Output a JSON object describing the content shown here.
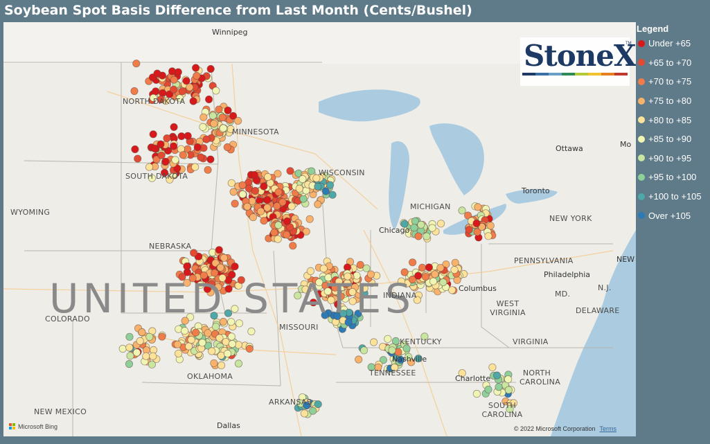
{
  "title": "Soybean Spot Basis Difference from Last Month (Cents/Bushel)",
  "legend": {
    "title": "Legend",
    "items": [
      {
        "label": "Under +65",
        "color": "#d7191c"
      },
      {
        "label": "+65 to +70",
        "color": "#e34a33"
      },
      {
        "label": "+70 to +75",
        "color": "#f07c4a"
      },
      {
        "label": "+75 to +80",
        "color": "#f9b26b"
      },
      {
        "label": "+80 to +85",
        "color": "#fde29a"
      },
      {
        "label": "+85 to +90",
        "color": "#f1f5b4"
      },
      {
        "label": "+90 to +95",
        "color": "#c8e6a0"
      },
      {
        "label": "+95 to +100",
        "color": "#8fd09a"
      },
      {
        "label": "+100 to +105",
        "color": "#4ea8a8"
      },
      {
        "label": "Over +105",
        "color": "#2c7bb6"
      }
    ]
  },
  "logo": {
    "text": "StoneX",
    "tm": "TM",
    "bar_colors": [
      "#1c3a64",
      "#3b6ea5",
      "#6aa0c8",
      "#2e8b57",
      "#b4c83a",
      "#f2c12e",
      "#e67e22",
      "#c0392b"
    ]
  },
  "map": {
    "country_label": "UNITED STATES",
    "states": [
      {
        "name": "NORTH DAKOTA"
      },
      {
        "name": "SOUTH DAKOTA"
      },
      {
        "name": "MINNESOTA"
      },
      {
        "name": "WISCONSIN"
      },
      {
        "name": "MICHIGAN"
      },
      {
        "name": "WYOMING"
      },
      {
        "name": "NEBRASKA"
      },
      {
        "name": "COLORADO"
      },
      {
        "name": "NEW MEXICO"
      },
      {
        "name": "MISSOURI"
      },
      {
        "name": "OKLAHOMA"
      },
      {
        "name": "ARKANSAS"
      },
      {
        "name": "KENTUCKY"
      },
      {
        "name": "TENNESSEE"
      },
      {
        "name": "INDIANA"
      },
      {
        "name": "WEST VIRGINIA"
      },
      {
        "name": "VIRGINIA"
      },
      {
        "name": "PENNSYLVANIA"
      },
      {
        "name": "NEW YORK"
      },
      {
        "name": "NORTH CAROLINA"
      },
      {
        "name": "SOUTH CAROLINA"
      },
      {
        "name": "MD."
      },
      {
        "name": "DELAWARE"
      },
      {
        "name": "N.J."
      },
      {
        "name": "NEW YORK"
      }
    ],
    "cities": [
      {
        "name": "Winnipeg"
      },
      {
        "name": "Chicago"
      },
      {
        "name": "Toronto"
      },
      {
        "name": "Ottawa"
      },
      {
        "name": "Columbus"
      },
      {
        "name": "Philadelphia"
      },
      {
        "name": "Nashville"
      },
      {
        "name": "Charlotte"
      },
      {
        "name": "Dallas"
      },
      {
        "name": "Mo"
      }
    ],
    "attribution": "Microsoft Bing",
    "copyright": "© 2022 Microsoft Corporation",
    "terms": "Terms"
  }
}
